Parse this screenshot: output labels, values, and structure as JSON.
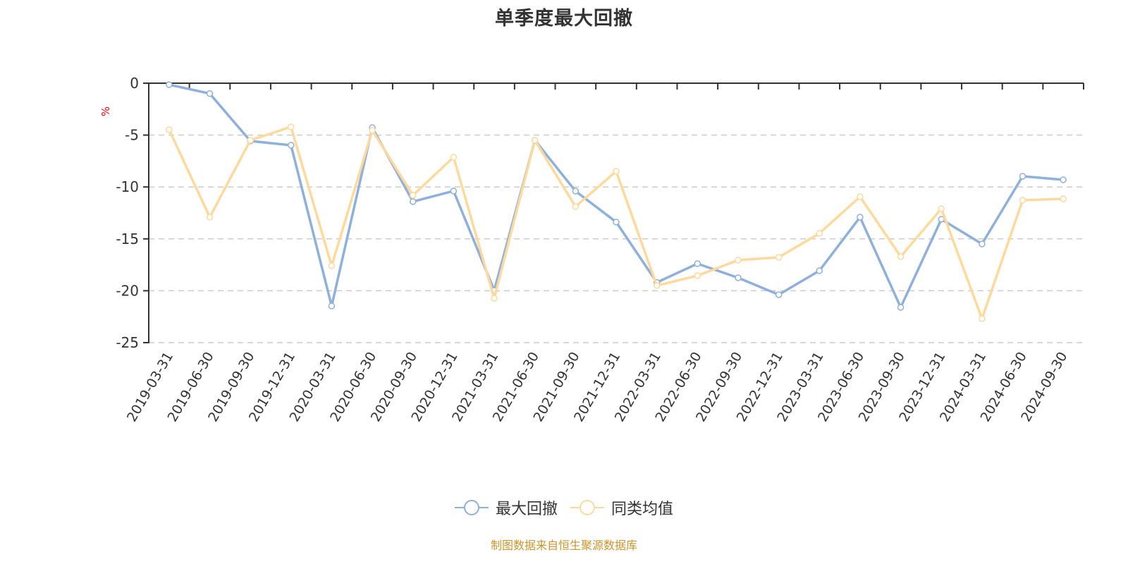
{
  "title": "单季度最大回撤",
  "source_note": "制图数据来自恒生聚源数据库",
  "colors": {
    "series_max_drawdown": "#8eb0dc",
    "series_peer_avg": "#fdd99b",
    "axis": "#333333",
    "grid": "#cccccc",
    "unit_label": "#ff0000",
    "source_note": "#c8962e"
  },
  "legend": [
    {
      "label": "最大回撤",
      "color": "#8eb0dc"
    },
    {
      "label": "同类均值",
      "color": "#fdd99b"
    }
  ],
  "chart_data": {
    "type": "line",
    "title": "单季度最大回撤",
    "xlabel": "",
    "ylabel": "%",
    "ylim": [
      -25,
      0
    ],
    "yticks": [
      0,
      -5,
      -10,
      -15,
      -20,
      -25
    ],
    "grid": true,
    "legend_position": "bottom",
    "categories": [
      "2019-03-31",
      "2019-06-30",
      "2019-09-30",
      "2019-12-31",
      "2020-03-31",
      "2020-06-30",
      "2020-09-30",
      "2020-12-31",
      "2021-03-31",
      "2021-06-30",
      "2021-09-30",
      "2021-12-31",
      "2022-03-31",
      "2022-06-30",
      "2022-09-30",
      "2022-12-31",
      "2023-03-31",
      "2023-06-30",
      "2023-09-30",
      "2023-12-31",
      "2024-03-31",
      "2024-06-30",
      "2024-09-30"
    ],
    "series": [
      {
        "name": "最大回撤",
        "values": [
          -0.14,
          -1.0,
          -5.57,
          -5.98,
          -21.47,
          -4.28,
          -11.41,
          -10.39,
          -19.97,
          -5.5,
          -10.4,
          -13.38,
          -19.2,
          -17.39,
          -18.75,
          -20.38,
          -18.07,
          -12.91,
          -21.6,
          -13.11,
          -15.49,
          -8.97,
          -9.31
        ]
      },
      {
        "name": "同类均值",
        "values": [
          -4.48,
          -12.91,
          -5.5,
          -4.21,
          -17.6,
          -4.55,
          -10.8,
          -7.13,
          -20.72,
          -5.5,
          -11.89,
          -8.49,
          -19.5,
          -18.55,
          -17.05,
          -16.78,
          -14.47,
          -10.94,
          -16.71,
          -12.09,
          -22.69,
          -11.28,
          -11.14
        ]
      }
    ]
  }
}
